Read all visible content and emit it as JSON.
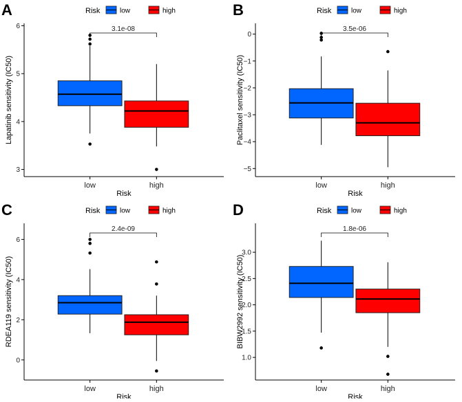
{
  "chart_data": [
    {
      "type": "box",
      "panel_label": "A",
      "title": "",
      "xlabel": "Risk",
      "ylabel": "Lapatinib sensitivity (IC50)",
      "ylim": [
        2.85,
        6.05
      ],
      "yticks": [
        3,
        4,
        5,
        6
      ],
      "ytick_labels": [
        "3",
        "4",
        "5",
        "6"
      ],
      "legend": {
        "title": "Risk",
        "position": "top",
        "entries": [
          "low",
          "high"
        ]
      },
      "p_value": "3.1e-08",
      "categories": [
        "low",
        "high"
      ],
      "boxes": [
        {
          "name": "low",
          "color": "#0066ff",
          "whisker_low": 3.75,
          "q1": 4.33,
          "median": 4.57,
          "q3": 4.85,
          "whisker_high": 5.58,
          "outliers": [
            3.53,
            5.62,
            5.72,
            5.8
          ]
        },
        {
          "name": "high",
          "color": "#ff0000",
          "whisker_low": 3.48,
          "q1": 3.88,
          "median": 4.22,
          "q3": 4.43,
          "whisker_high": 5.2,
          "outliers": [
            3.0
          ]
        }
      ]
    },
    {
      "type": "box",
      "panel_label": "B",
      "title": "",
      "xlabel": "Risk",
      "ylabel": "Paclitaxel sensitivity (IC50)",
      "ylim": [
        -5.3,
        0.4
      ],
      "yticks": [
        -5,
        -4,
        -3,
        -2,
        -1,
        0
      ],
      "ytick_labels": [
        "−5",
        "−4",
        "−3",
        "−2",
        "−1",
        "0"
      ],
      "legend": {
        "title": "Risk",
        "position": "top",
        "entries": [
          "low",
          "high"
        ]
      },
      "p_value": "3.5e-06",
      "categories": [
        "low",
        "high"
      ],
      "boxes": [
        {
          "name": "low",
          "color": "#0066ff",
          "whisker_low": -4.12,
          "q1": -3.12,
          "median": -2.56,
          "q3": -2.03,
          "whisker_high": -0.83,
          "outliers": [
            -0.22,
            -0.12,
            0.03
          ]
        },
        {
          "name": "high",
          "color": "#ff0000",
          "whisker_low": -4.95,
          "q1": -3.78,
          "median": -3.3,
          "q3": -2.57,
          "whisker_high": -1.35,
          "outliers": [
            -0.65
          ]
        }
      ]
    },
    {
      "type": "box",
      "panel_label": "C",
      "title": "",
      "xlabel": "Risk",
      "ylabel": "RDEA119 sensitivity (IC50)",
      "ylim": [
        -1.0,
        6.8
      ],
      "yticks": [
        0,
        2,
        4,
        6
      ],
      "ytick_labels": [
        "0",
        "2",
        "4",
        "6"
      ],
      "legend": {
        "title": "Risk",
        "position": "top",
        "entries": [
          "low",
          "high"
        ]
      },
      "p_value": "2.4e-09",
      "categories": [
        "low",
        "high"
      ],
      "boxes": [
        {
          "name": "low",
          "color": "#0066ff",
          "whisker_low": 1.33,
          "q1": 2.28,
          "median": 2.85,
          "q3": 3.2,
          "whisker_high": 4.52,
          "outliers": [
            5.32,
            5.8,
            6.0
          ]
        },
        {
          "name": "high",
          "color": "#ff0000",
          "whisker_low": -0.05,
          "q1": 1.25,
          "median": 1.88,
          "q3": 2.25,
          "whisker_high": 3.2,
          "outliers": [
            -0.55,
            3.78,
            4.88
          ]
        }
      ]
    },
    {
      "type": "box",
      "panel_label": "D",
      "title": "",
      "xlabel": "Risk",
      "ylabel": "BIBW2992 sensitivity (IC50)",
      "ylim": [
        0.57,
        3.55
      ],
      "yticks": [
        1.0,
        1.5,
        2.0,
        2.5,
        3.0
      ],
      "ytick_labels": [
        "1.0",
        "1.5",
        "2.0",
        "2.5",
        "3.0"
      ],
      "legend": {
        "title": "Risk",
        "position": "top",
        "entries": [
          "low",
          "high"
        ]
      },
      "p_value": "1.8e-06",
      "categories": [
        "low",
        "high"
      ],
      "boxes": [
        {
          "name": "low",
          "color": "#0066ff",
          "whisker_low": 1.47,
          "q1": 2.14,
          "median": 2.41,
          "q3": 2.73,
          "whisker_high": 3.22,
          "outliers": [
            1.18
          ]
        },
        {
          "name": "high",
          "color": "#ff0000",
          "whisker_low": 1.2,
          "q1": 1.85,
          "median": 2.11,
          "q3": 2.3,
          "whisker_high": 2.81,
          "outliers": [
            0.68,
            1.02
          ]
        }
      ]
    }
  ]
}
